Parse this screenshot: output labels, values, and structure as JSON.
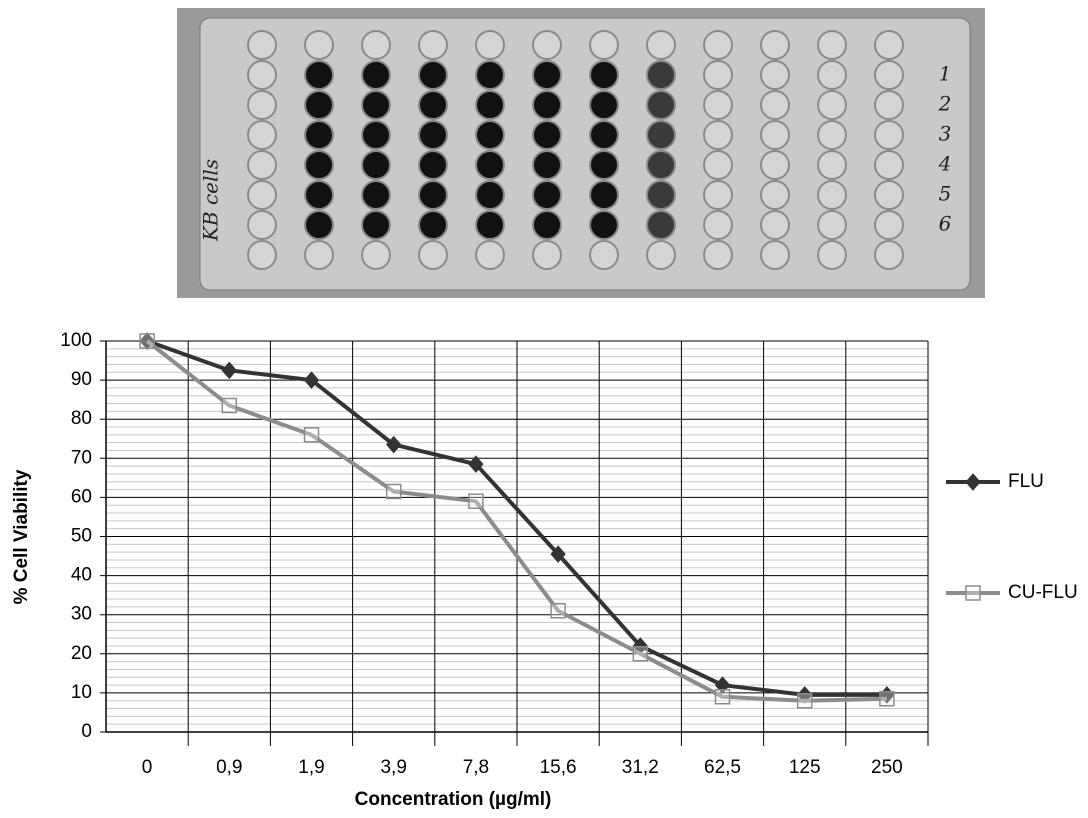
{
  "photo": {
    "side_label": "KB cells",
    "row_labels": [
      "1",
      "2",
      "3",
      "4",
      "5",
      "6"
    ]
  },
  "chart_data": {
    "type": "line",
    "x_label": "Concentration (µg/ml)",
    "y_label": "% Cell Viability",
    "categories": [
      "0",
      "0,9",
      "1,9",
      "3,9",
      "7,8",
      "15,6",
      "31,2",
      "62,5",
      "125",
      "250"
    ],
    "series": [
      {
        "name": "FLU",
        "color": "#333333",
        "marker": "diamond",
        "values": [
          100,
          92.5,
          90,
          73.5,
          68.5,
          45.5,
          22,
          12,
          9.5,
          9.5
        ]
      },
      {
        "name": "CU-FLU",
        "color": "#8c8c8c",
        "marker": "square",
        "values": [
          100,
          83.5,
          76,
          61.5,
          59,
          31,
          20,
          9,
          8,
          8.5
        ]
      }
    ],
    "ylim": [
      0,
      100
    ],
    "yticks": [
      0,
      10,
      20,
      30,
      40,
      50,
      60,
      70,
      80,
      90,
      100
    ],
    "grid": true,
    "legend": "right"
  }
}
